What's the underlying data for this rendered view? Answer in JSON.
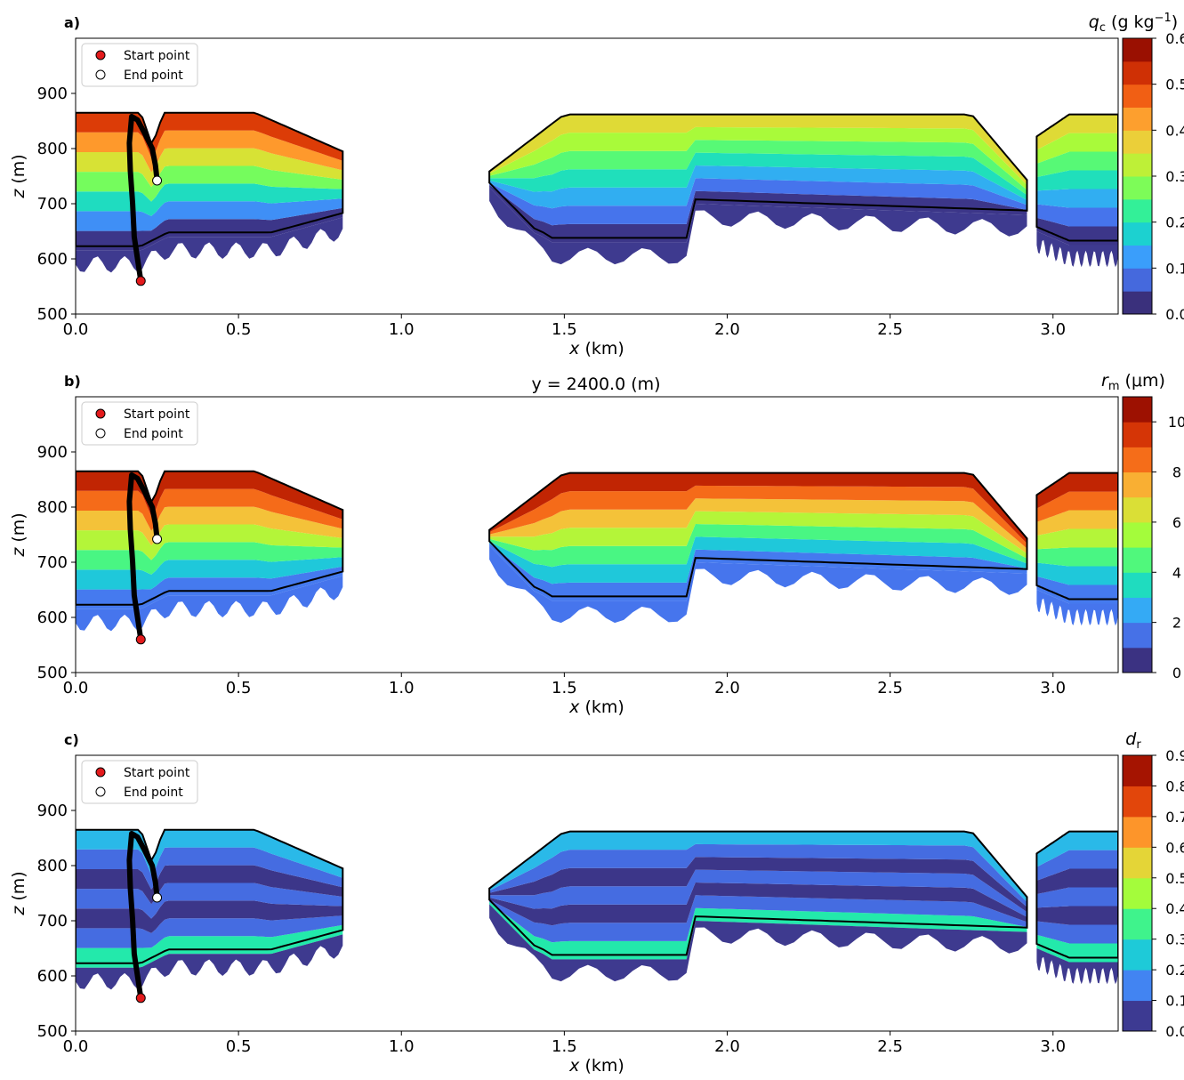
{
  "figure": {
    "title": "y = 2400.0 (m)",
    "legend": {
      "start_label": "Start point",
      "end_label": "End point",
      "start_color": "#e31a1c",
      "end_color": "#ffffff"
    }
  },
  "chart_data": [
    {
      "type": "heatmap",
      "panel_label": "a)",
      "xlabel": "x (km)",
      "ylabel": "z (m)",
      "xlim": [
        0,
        3.2
      ],
      "ylim": [
        500,
        1000
      ],
      "xticks": [
        "0.0",
        "0.5",
        "1.0",
        "1.5",
        "2.0",
        "2.5",
        "3.0"
      ],
      "yticks": [
        "500",
        "600",
        "700",
        "800",
        "900"
      ],
      "colorbar": {
        "label_main": "q",
        "label_sub": "c",
        "label_units": "(g kg",
        "label_sup": "−1",
        "label_close": ")",
        "ticks": [
          "0.0",
          "0.1",
          "0.2",
          "0.3",
          "0.4",
          "0.5",
          "0.6"
        ],
        "levels": 12,
        "range": [
          0,
          0.6
        ],
        "colormap": "turbo"
      },
      "trajectory": {
        "start": {
          "x": 0.2,
          "z": 560
        },
        "end": {
          "x": 0.25,
          "z": 742
        },
        "points": [
          [
            0.2,
            560
          ],
          [
            0.19,
            600
          ],
          [
            0.18,
            640
          ],
          [
            0.175,
            700
          ],
          [
            0.168,
            760
          ],
          [
            0.165,
            810
          ],
          [
            0.172,
            858
          ],
          [
            0.19,
            852
          ],
          [
            0.21,
            830
          ],
          [
            0.235,
            800
          ],
          [
            0.245,
            770
          ],
          [
            0.25,
            742
          ]
        ]
      },
      "cloud_description": "Stratocumulus cloud layer between ~600 m and ~870 m; cloud segments x=0–0.82 km, 1.27–2.9 km, 2.95–3.2 km"
    },
    {
      "type": "heatmap",
      "panel_label": "b)",
      "xlabel": "x (km)",
      "ylabel": "z (m)",
      "xlim": [
        0,
        3.2
      ],
      "ylim": [
        500,
        1000
      ],
      "xticks": [
        "0.0",
        "0.5",
        "1.0",
        "1.5",
        "2.0",
        "2.5",
        "3.0"
      ],
      "yticks": [
        "500",
        "600",
        "700",
        "800",
        "900"
      ],
      "colorbar": {
        "label_main": "r",
        "label_sub": "m",
        "label_units": "(μm)",
        "label_sup": "",
        "label_close": "",
        "ticks": [
          "0",
          "2",
          "4",
          "6",
          "8",
          "10"
        ],
        "levels": 11,
        "range": [
          0,
          11
        ],
        "colormap": "turbo"
      },
      "trajectory": {
        "start": {
          "x": 0.2,
          "z": 560
        },
        "end": {
          "x": 0.25,
          "z": 742
        },
        "points": [
          [
            0.2,
            560
          ],
          [
            0.19,
            600
          ],
          [
            0.18,
            640
          ],
          [
            0.175,
            700
          ],
          [
            0.168,
            760
          ],
          [
            0.165,
            810
          ],
          [
            0.172,
            858
          ],
          [
            0.19,
            852
          ],
          [
            0.21,
            830
          ],
          [
            0.235,
            800
          ],
          [
            0.245,
            770
          ],
          [
            0.25,
            742
          ]
        ]
      }
    },
    {
      "type": "heatmap",
      "panel_label": "c)",
      "xlabel": "x (km)",
      "ylabel": "z (m)",
      "xlim": [
        0,
        3.2
      ],
      "ylim": [
        500,
        1000
      ],
      "xticks": [
        "0.0",
        "0.5",
        "1.0",
        "1.5",
        "2.0",
        "2.5",
        "3.0"
      ],
      "yticks": [
        "500",
        "600",
        "700",
        "800",
        "900"
      ],
      "colorbar": {
        "label_main": "d",
        "label_sub": "r",
        "label_units": "",
        "label_sup": "",
        "label_close": "",
        "ticks": [
          "0.0",
          "0.1",
          "0.2",
          "0.3",
          "0.4",
          "0.5",
          "0.6",
          "0.7",
          "0.8",
          "0.9"
        ],
        "levels": 9,
        "range": [
          0,
          0.9
        ],
        "colormap": "turbo"
      },
      "trajectory": {
        "start": {
          "x": 0.2,
          "z": 560
        },
        "end": {
          "x": 0.25,
          "z": 742
        },
        "points": [
          [
            0.2,
            560
          ],
          [
            0.19,
            600
          ],
          [
            0.18,
            640
          ],
          [
            0.175,
            700
          ],
          [
            0.168,
            760
          ],
          [
            0.165,
            810
          ],
          [
            0.172,
            858
          ],
          [
            0.19,
            852
          ],
          [
            0.21,
            830
          ],
          [
            0.235,
            800
          ],
          [
            0.245,
            770
          ],
          [
            0.25,
            742
          ]
        ]
      }
    }
  ]
}
